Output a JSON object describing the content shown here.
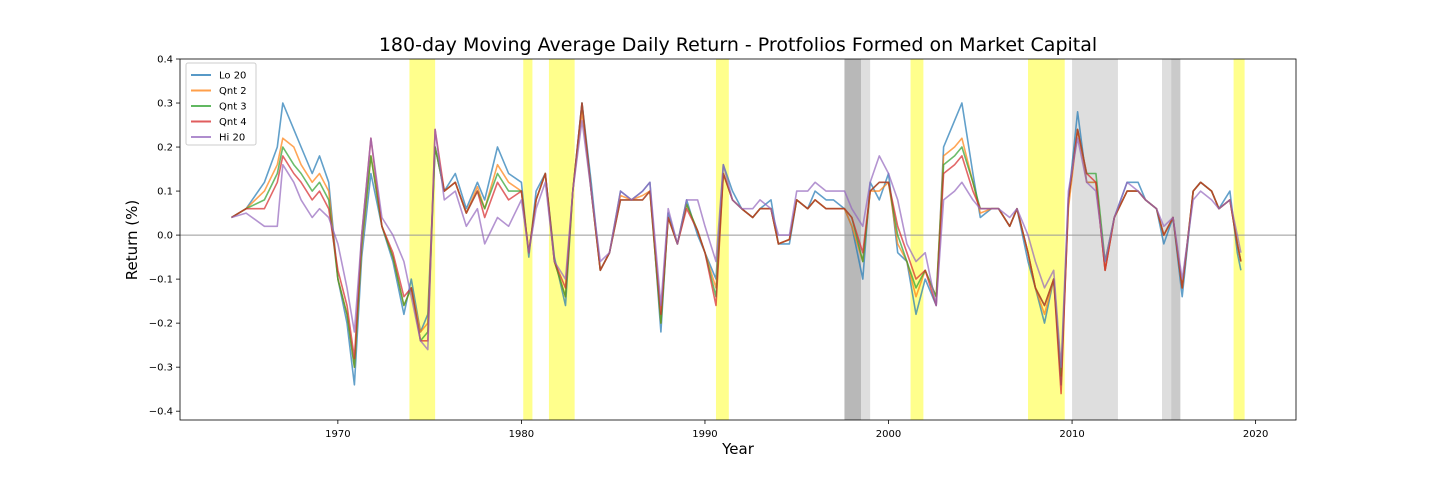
{
  "chart_data": {
    "type": "line",
    "title": "180-day Moving Average Daily Return - Protfolios Formed on Market Capital",
    "xlabel": "Year",
    "ylabel": "Return (%)",
    "xlim": [
      1961.4,
      2022.2
    ],
    "ylim": [
      -0.42,
      0.4
    ],
    "xticks": [
      1970,
      1980,
      1990,
      2000,
      2010,
      2020
    ],
    "yticks": [
      -0.4,
      -0.3,
      -0.2,
      -0.1,
      0.0,
      0.1,
      0.2,
      0.3,
      0.4
    ],
    "ytick_labels": [
      "−0.4",
      "−0.3",
      "−0.2",
      "−0.1",
      "0.0",
      "0.1",
      "0.2",
      "0.3",
      "0.4"
    ],
    "grid": false,
    "legend_position": "top-left",
    "zero_line": 0.0,
    "shaded_periods": [
      {
        "start": 1973.9,
        "end": 1975.3,
        "color": "#ffff66"
      },
      {
        "start": 1980.1,
        "end": 1980.6,
        "color": "#ffff66"
      },
      {
        "start": 1981.5,
        "end": 1982.9,
        "color": "#ffff66"
      },
      {
        "start": 1990.6,
        "end": 1991.3,
        "color": "#ffff66"
      },
      {
        "start": 1997.6,
        "end": 1998.5,
        "color": "#a0a0a0"
      },
      {
        "start": 1998.5,
        "end": 1999.0,
        "color": "#d3d3d3"
      },
      {
        "start": 2001.2,
        "end": 2001.9,
        "color": "#ffff66"
      },
      {
        "start": 2007.6,
        "end": 2009.6,
        "color": "#ffff66"
      },
      {
        "start": 2010.0,
        "end": 2012.5,
        "color": "#d3d3d3"
      },
      {
        "start": 2014.9,
        "end": 2015.4,
        "color": "#d3d3d3"
      },
      {
        "start": 2015.4,
        "end": 2015.9,
        "color": "#b8b8b8"
      },
      {
        "start": 2018.8,
        "end": 2019.4,
        "color": "#ffff66"
      }
    ],
    "x": [
      1964.2,
      1965,
      1966,
      1966.7,
      1967,
      1967.6,
      1968,
      1968.6,
      1969,
      1969.5,
      1970,
      1970.5,
      1970.9,
      1971.3,
      1971.8,
      1972.4,
      1973,
      1973.6,
      1974,
      1974.5,
      1974.9,
      1975.3,
      1975.8,
      1976.4,
      1977,
      1977.6,
      1978,
      1978.7,
      1979.3,
      1980,
      1980.4,
      1980.8,
      1981.3,
      1981.8,
      1982.4,
      1982.8,
      1983.3,
      1983.8,
      1984.3,
      1984.8,
      1985.4,
      1986,
      1986.6,
      1987,
      1987.6,
      1988,
      1988.5,
      1989,
      1989.6,
      1990,
      1990.6,
      1991,
      1991.5,
      1992,
      1992.6,
      1993,
      1993.6,
      1994,
      1994.6,
      1995,
      1995.6,
      1996,
      1996.6,
      1997,
      1997.6,
      1998,
      1998.6,
      1999,
      1999.5,
      2000,
      2000.5,
      2001,
      2001.5,
      2002,
      2002.6,
      2003,
      2003.6,
      2004,
      2004.6,
      2005,
      2005.6,
      2006,
      2006.6,
      2007,
      2007.6,
      2008,
      2008.5,
      2009,
      2009.4,
      2009.8,
      2010.3,
      2010.8,
      2011.3,
      2011.8,
      2012.3,
      2013,
      2013.6,
      2014,
      2014.6,
      2015,
      2015.5,
      2016,
      2016.6,
      2017,
      2017.6,
      2018,
      2018.6,
      2019,
      2019.2
    ],
    "series": [
      {
        "name": "Lo 20",
        "color": "#1f77b4",
        "values": [
          0.04,
          0.06,
          0.12,
          0.2,
          0.3,
          0.24,
          0.2,
          0.14,
          0.18,
          0.12,
          -0.1,
          -0.2,
          -0.34,
          -0.05,
          0.14,
          0.02,
          -0.06,
          -0.18,
          -0.1,
          -0.22,
          -0.18,
          0.2,
          0.1,
          0.14,
          0.06,
          0.12,
          0.08,
          0.2,
          0.14,
          0.12,
          -0.05,
          0.1,
          0.14,
          -0.05,
          -0.16,
          0.1,
          0.3,
          0.12,
          -0.08,
          -0.04,
          0.1,
          0.08,
          0.1,
          0.12,
          -0.22,
          0.05,
          -0.02,
          0.08,
          0.0,
          -0.04,
          -0.1,
          0.16,
          0.1,
          0.06,
          0.04,
          0.06,
          0.08,
          -0.02,
          -0.02,
          0.08,
          0.06,
          0.1,
          0.08,
          0.08,
          0.06,
          0.02,
          -0.1,
          0.12,
          0.08,
          0.14,
          -0.04,
          -0.06,
          -0.18,
          -0.1,
          -0.16,
          0.2,
          0.26,
          0.3,
          0.14,
          0.04,
          0.06,
          0.06,
          0.02,
          0.06,
          -0.06,
          -0.12,
          -0.2,
          -0.1,
          -0.34,
          0.08,
          0.28,
          0.12,
          0.12,
          -0.08,
          0.04,
          0.12,
          0.12,
          0.08,
          0.06,
          -0.02,
          0.04,
          -0.14,
          0.1,
          0.12,
          0.1,
          0.06,
          0.1,
          -0.04,
          -0.08
        ]
      },
      {
        "name": "Qnt 2",
        "color": "#ff7f0e",
        "values": [
          0.04,
          0.06,
          0.1,
          0.16,
          0.22,
          0.2,
          0.16,
          0.12,
          0.14,
          0.1,
          -0.1,
          -0.18,
          -0.3,
          -0.03,
          0.18,
          0.02,
          -0.05,
          -0.16,
          -0.12,
          -0.22,
          -0.2,
          0.2,
          0.1,
          0.12,
          0.05,
          0.11,
          0.06,
          0.16,
          0.12,
          0.1,
          -0.04,
          0.08,
          0.14,
          -0.06,
          -0.14,
          0.1,
          0.28,
          0.1,
          -0.08,
          -0.04,
          0.09,
          0.08,
          0.09,
          0.1,
          -0.2,
          0.04,
          -0.02,
          0.07,
          0.01,
          -0.04,
          -0.12,
          0.14,
          0.08,
          0.06,
          0.04,
          0.06,
          0.06,
          -0.02,
          -0.01,
          0.08,
          0.06,
          0.08,
          0.06,
          0.06,
          0.06,
          0.02,
          -0.06,
          0.1,
          0.1,
          0.12,
          -0.02,
          -0.06,
          -0.14,
          -0.08,
          -0.14,
          0.18,
          0.2,
          0.22,
          0.12,
          0.05,
          0.06,
          0.06,
          0.02,
          0.06,
          -0.04,
          -0.12,
          -0.18,
          -0.1,
          -0.32,
          0.06,
          0.24,
          0.12,
          0.12,
          -0.08,
          0.04,
          0.1,
          0.1,
          0.08,
          0.06,
          0.0,
          0.04,
          -0.12,
          0.1,
          0.12,
          0.1,
          0.06,
          0.08,
          -0.02,
          -0.06
        ]
      },
      {
        "name": "Qnt 3",
        "color": "#2ca02c",
        "values": [
          0.04,
          0.06,
          0.08,
          0.14,
          0.2,
          0.16,
          0.14,
          0.1,
          0.12,
          0.08,
          -0.1,
          -0.18,
          -0.3,
          -0.02,
          0.18,
          0.02,
          -0.05,
          -0.16,
          -0.12,
          -0.24,
          -0.22,
          0.2,
          0.1,
          0.12,
          0.05,
          0.1,
          0.06,
          0.14,
          0.1,
          0.1,
          -0.04,
          0.08,
          0.14,
          -0.06,
          -0.14,
          0.1,
          0.3,
          0.1,
          -0.08,
          -0.04,
          0.08,
          0.08,
          0.08,
          0.1,
          -0.2,
          0.04,
          -0.02,
          0.07,
          0.01,
          -0.04,
          -0.14,
          0.14,
          0.08,
          0.06,
          0.04,
          0.06,
          0.06,
          -0.02,
          -0.01,
          0.08,
          0.06,
          0.08,
          0.06,
          0.06,
          0.06,
          0.04,
          -0.06,
          0.1,
          0.12,
          0.12,
          0.0,
          -0.06,
          -0.12,
          -0.08,
          -0.14,
          0.16,
          0.18,
          0.2,
          0.12,
          0.06,
          0.06,
          0.06,
          0.02,
          0.06,
          -0.04,
          -0.12,
          -0.16,
          -0.1,
          -0.32,
          0.08,
          0.24,
          0.14,
          0.14,
          -0.06,
          0.04,
          0.1,
          0.1,
          0.08,
          0.06,
          0.0,
          0.04,
          -0.12,
          0.1,
          0.12,
          0.1,
          0.06,
          0.08,
          -0.02,
          -0.06
        ]
      },
      {
        "name": "Qnt 4",
        "color": "#d62728",
        "values": [
          0.04,
          0.06,
          0.06,
          0.12,
          0.18,
          0.14,
          0.12,
          0.08,
          0.1,
          0.06,
          -0.08,
          -0.16,
          -0.28,
          0.0,
          0.22,
          0.02,
          -0.04,
          -0.14,
          -0.12,
          -0.24,
          -0.24,
          0.24,
          0.1,
          0.12,
          0.05,
          0.1,
          0.04,
          0.12,
          0.08,
          0.1,
          -0.04,
          0.08,
          0.14,
          -0.06,
          -0.12,
          0.1,
          0.3,
          0.1,
          -0.08,
          -0.04,
          0.08,
          0.08,
          0.08,
          0.1,
          -0.18,
          0.04,
          -0.02,
          0.06,
          0.01,
          -0.04,
          -0.16,
          0.14,
          0.08,
          0.06,
          0.04,
          0.06,
          0.06,
          -0.02,
          -0.01,
          0.08,
          0.06,
          0.08,
          0.06,
          0.06,
          0.06,
          0.04,
          -0.04,
          0.1,
          0.12,
          0.12,
          0.02,
          -0.04,
          -0.1,
          -0.08,
          -0.16,
          0.14,
          0.16,
          0.18,
          0.1,
          0.06,
          0.06,
          0.06,
          0.02,
          0.06,
          -0.04,
          -0.12,
          -0.16,
          -0.1,
          -0.36,
          0.08,
          0.24,
          0.14,
          0.12,
          -0.08,
          0.04,
          0.1,
          0.1,
          0.08,
          0.06,
          0.0,
          0.04,
          -0.12,
          0.1,
          0.12,
          0.1,
          0.06,
          0.08,
          -0.02,
          -0.06
        ]
      },
      {
        "name": "Hi 20",
        "color": "#9467bd",
        "values": [
          0.04,
          0.05,
          0.02,
          0.02,
          0.16,
          0.12,
          0.08,
          0.04,
          0.06,
          0.04,
          -0.02,
          -0.12,
          -0.22,
          0.0,
          0.22,
          0.04,
          0.0,
          -0.06,
          -0.14,
          -0.24,
          -0.26,
          0.24,
          0.08,
          0.1,
          0.02,
          0.06,
          -0.02,
          0.04,
          0.02,
          0.08,
          -0.04,
          0.06,
          0.12,
          -0.06,
          -0.1,
          0.1,
          0.26,
          0.1,
          -0.06,
          -0.04,
          0.1,
          0.08,
          0.1,
          0.12,
          -0.16,
          0.06,
          -0.02,
          0.08,
          0.08,
          0.02,
          -0.06,
          0.16,
          0.08,
          0.06,
          0.06,
          0.08,
          0.06,
          0.0,
          0.0,
          0.1,
          0.1,
          0.12,
          0.1,
          0.1,
          0.1,
          0.06,
          0.02,
          0.12,
          0.18,
          0.14,
          0.08,
          -0.02,
          -0.06,
          -0.04,
          -0.16,
          0.08,
          0.1,
          0.12,
          0.08,
          0.06,
          0.06,
          0.06,
          0.04,
          0.06,
          0.0,
          -0.06,
          -0.12,
          -0.08,
          -0.3,
          0.1,
          0.22,
          0.12,
          0.1,
          -0.06,
          0.04,
          0.12,
          0.1,
          0.08,
          0.06,
          0.02,
          0.04,
          -0.1,
          0.08,
          0.1,
          0.08,
          0.06,
          0.08,
          0.0,
          -0.04
        ]
      }
    ]
  }
}
